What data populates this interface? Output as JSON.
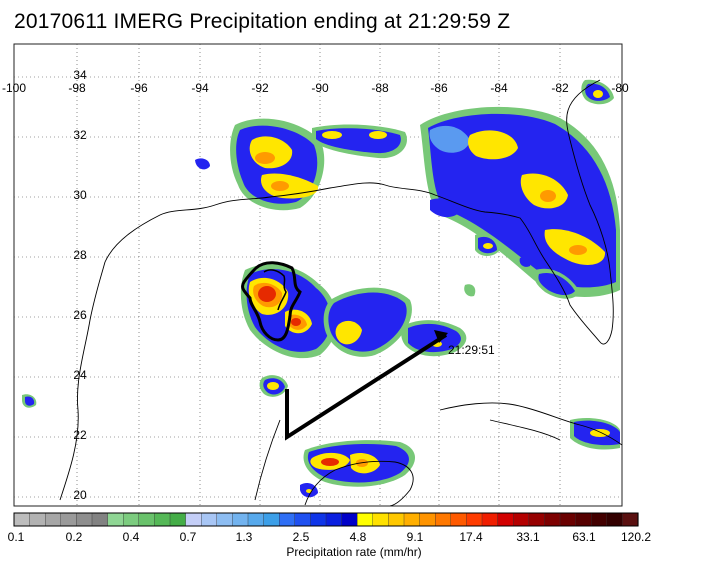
{
  "title": "20170611 IMERG Precipitation ending at 21:29:59 Z",
  "longitude_labels": [
    "-100",
    "-98",
    "-96",
    "-94",
    "-92",
    "-90",
    "-88",
    "-86",
    "-84",
    "-82",
    "-80"
  ],
  "latitude_labels": [
    "34",
    "32",
    "30",
    "28",
    "26",
    "24",
    "22",
    "20"
  ],
  "track_end_label": "21:29:51",
  "colorbar": {
    "title": "Precipitation rate (mm/hr)",
    "tick_labels": [
      "0.1",
      "0.2",
      "0.4",
      "0.7",
      "1.3",
      "2.5",
      "4.8",
      "9.1",
      "17.4",
      "33.1",
      "63.1",
      "120.2"
    ],
    "colors": [
      "#bdbdbd",
      "#b2b2b2",
      "#a6a6a6",
      "#9a9a9a",
      "#8e8e8e",
      "#828282",
      "#8fd694",
      "#7ccc7f",
      "#69c26b",
      "#55b857",
      "#44ad47",
      "#c4cef7",
      "#a8c6f5",
      "#8dbdf2",
      "#72b3ef",
      "#57a9ec",
      "#3c9fe8",
      "#2f6ff5",
      "#1f50f0",
      "#0f35e8",
      "#0a1fe0",
      "#0000c8",
      "#ffff00",
      "#ffe100",
      "#ffc800",
      "#ffaf00",
      "#ff9400",
      "#ff7800",
      "#ff5a00",
      "#ff3c00",
      "#f01e00",
      "#d20000",
      "#b40000",
      "#960000",
      "#7d0000",
      "#6a0000",
      "#560000",
      "#430000",
      "#330000",
      "#5a1010"
    ]
  },
  "colors": {
    "green": "#78c878",
    "blue": "#2424f0",
    "light_blue": "#5a9af0",
    "yellow": "#ffe600",
    "orange": "#ff9a00",
    "red": "#e62a00"
  }
}
